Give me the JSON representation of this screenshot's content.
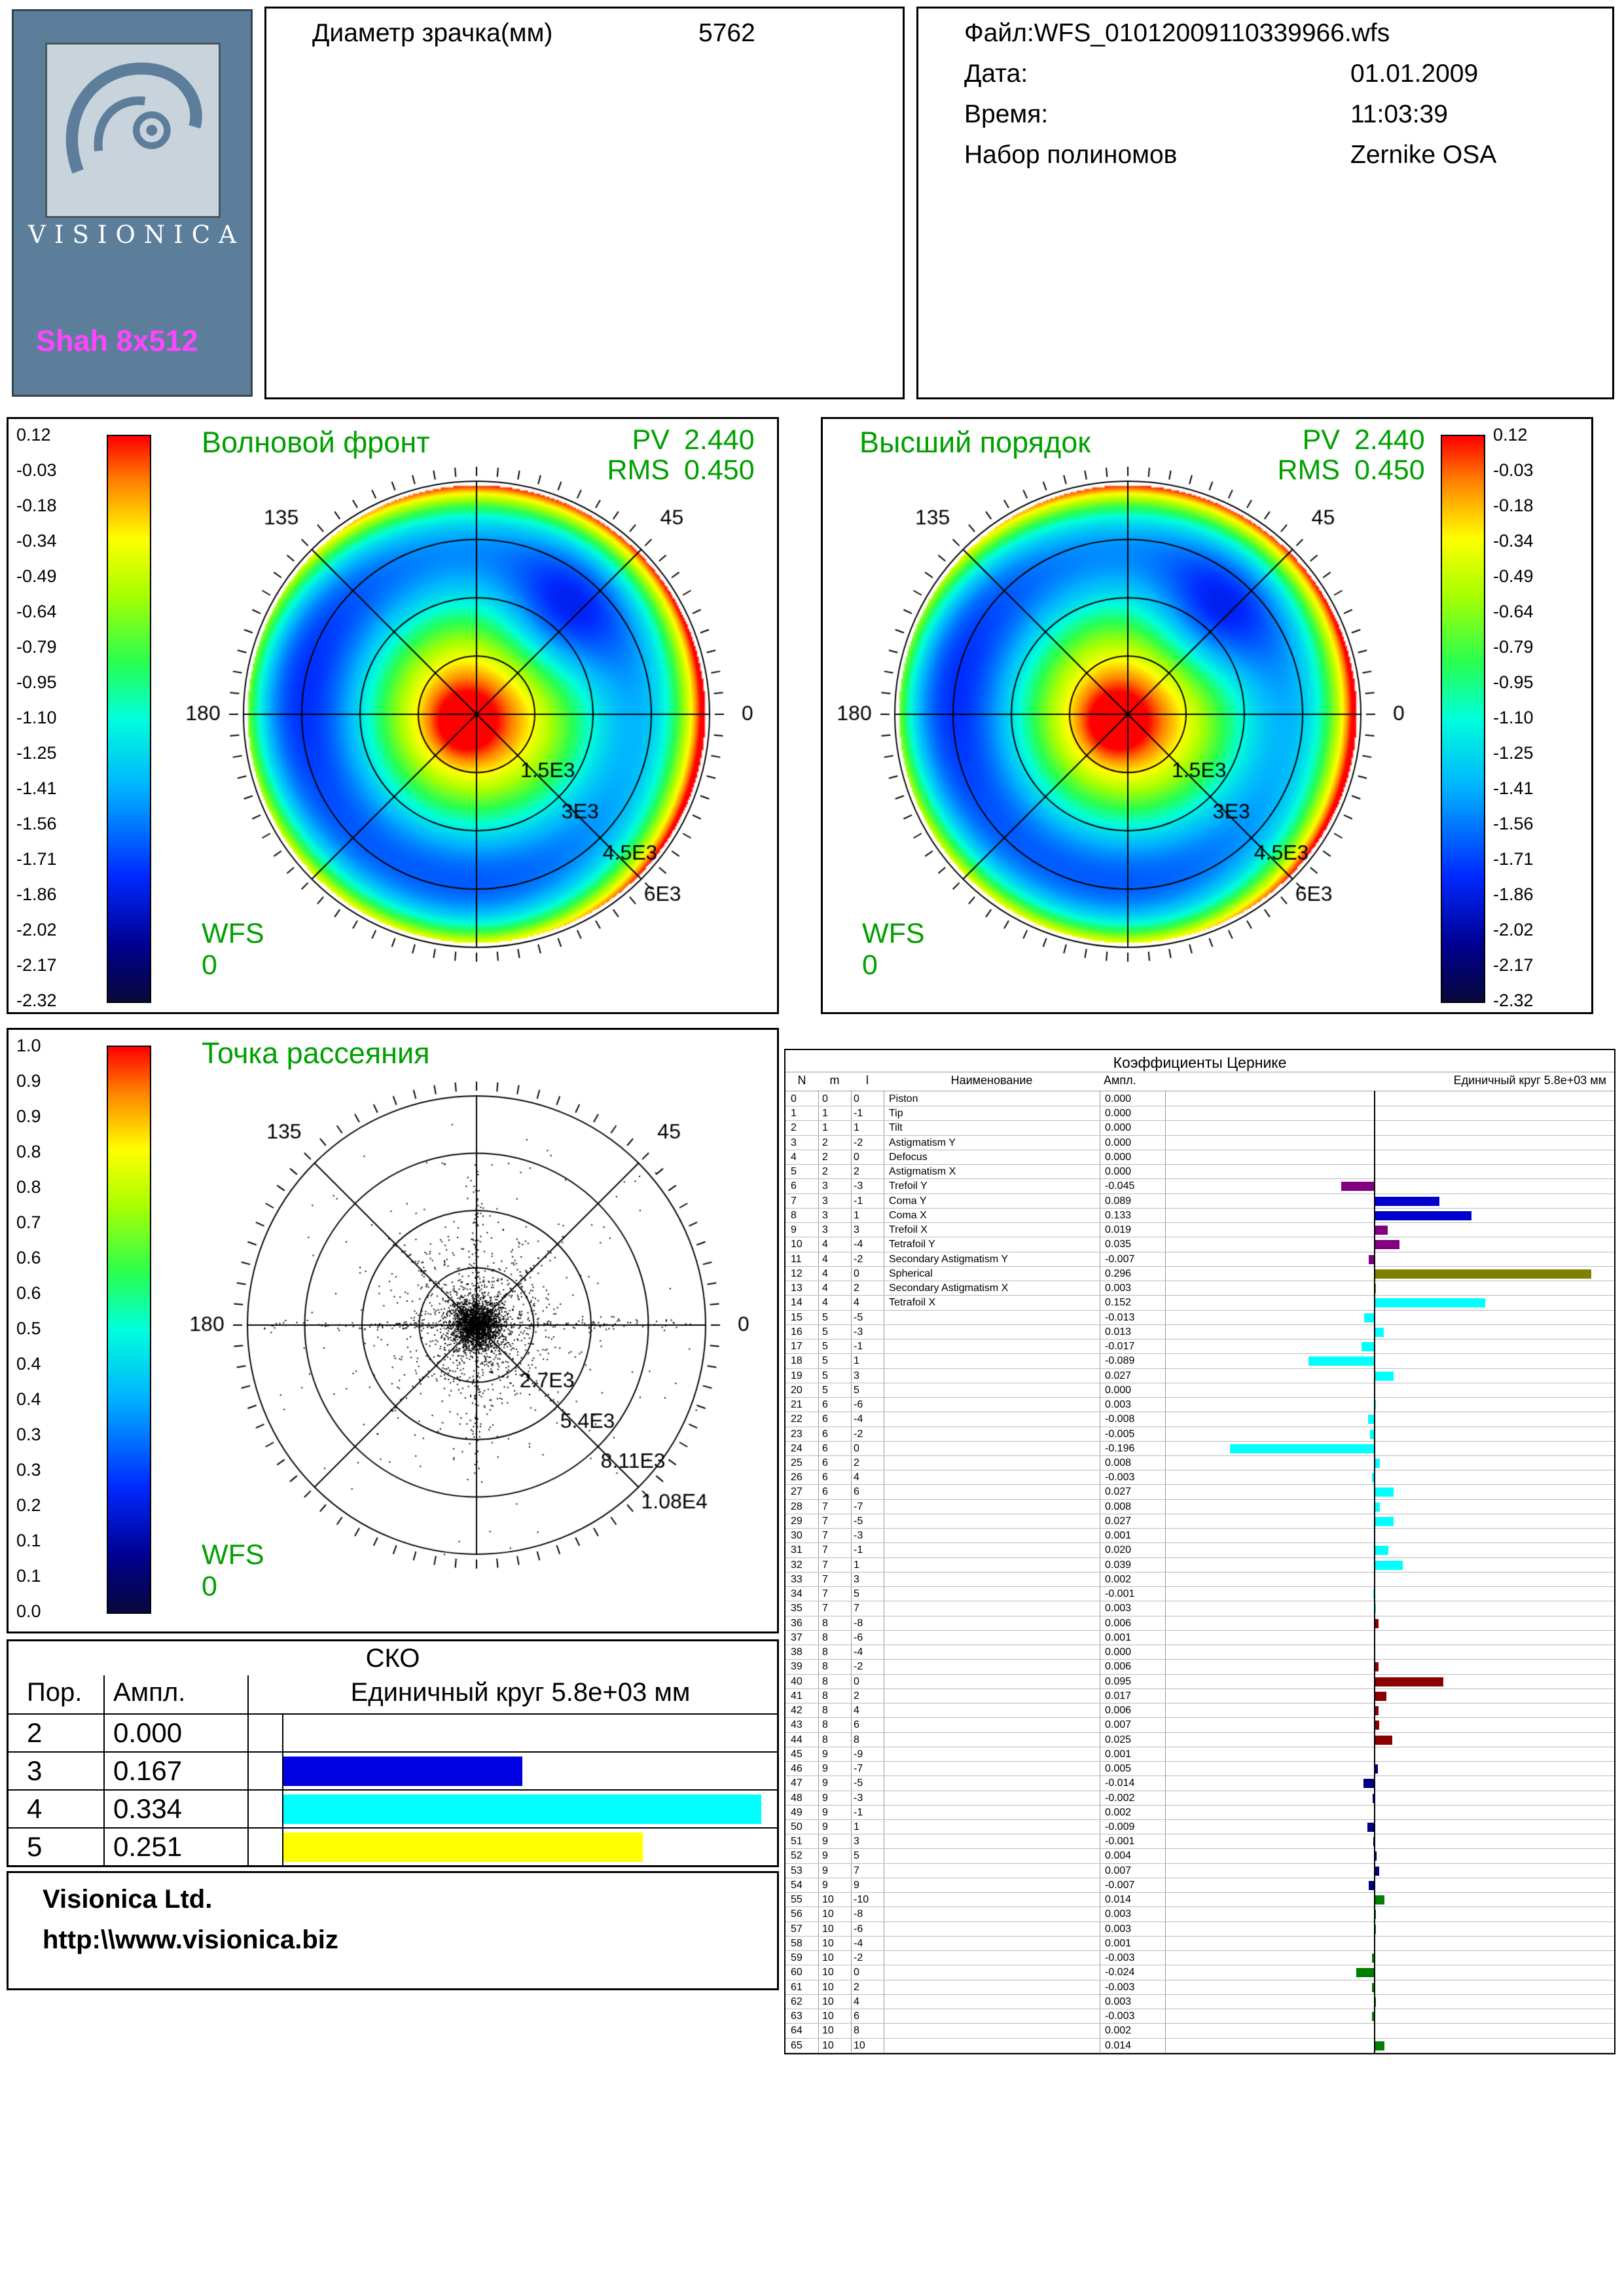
{
  "colors": {
    "accent_green": "#00a000",
    "brand_magenta": "#ff45ff",
    "logo_bg": "#5d7e9b"
  },
  "logo": {
    "brand": "VISIONICA",
    "model": "Shah 8x512"
  },
  "pupil": {
    "label": "Диаметр зрачка(мм)",
    "value": "5762"
  },
  "fileinfo": {
    "file": "Файл:WFS_01012009110339966.wfs",
    "date_label": "Дата:",
    "date": "01.01.2009",
    "time_label": "Время:",
    "time": "11:03:39",
    "poly_label": "Набор полиномов",
    "poly": "Zernike OSA"
  },
  "wavefront": {
    "title": "Волновой фронт",
    "pv_label": "PV",
    "pv": "2.440",
    "rms_label": "RMS",
    "rms": "0.450",
    "wfs_label": "WFS",
    "wfs_zero": "0"
  },
  "higher": {
    "title": "Высший порядок",
    "pv_label": "PV",
    "pv": "2.440",
    "rms_label": "RMS",
    "rms": "0.450",
    "wfs_label": "WFS",
    "wfs_zero": "0"
  },
  "spot": {
    "title": "Точка рассеяния",
    "wfs_label": "WFS",
    "wfs_zero": "0"
  },
  "zernike": {
    "title": "Коэффициенты Цернике",
    "col_index": "N",
    "col_n": "m",
    "col_m": "l",
    "col_name": "Наименование",
    "col_amp": "Ампл.",
    "unit_label": "Единичный круг 5.8e+03 мм"
  },
  "sko": {
    "title": "СКО",
    "col_order": "Пор.",
    "col_amp": "Ампл.",
    "unit_label": "Единичный круг 5.8e+03 мм"
  },
  "footer": {
    "company": "Visionica Ltd.",
    "url": "http:\\\\www.visionica.biz"
  },
  "chart_data": [
    {
      "id": "wavefront_map",
      "type": "heatmap",
      "title": "Волновой фронт",
      "pv": 2.44,
      "rms": 0.45,
      "scale_min": -2.32,
      "scale_max": 0.12,
      "colorbar_ticks": [
        "0.12",
        "-0.03",
        "-0.18",
        "-0.34",
        "-0.49",
        "-0.64",
        "-0.79",
        "-0.95",
        "-1.10",
        "-1.25",
        "-1.41",
        "-1.56",
        "-1.71",
        "-1.86",
        "-2.02",
        "-2.17",
        "-2.32"
      ],
      "angle_labels": [
        "135",
        "45",
        "180",
        "0"
      ],
      "radius_labels": [
        "1.5E3",
        "3E3",
        "4.5E3",
        "6E3"
      ]
    },
    {
      "id": "higher_order_map",
      "type": "heatmap",
      "title": "Высший порядок",
      "pv": 2.44,
      "rms": 0.45,
      "scale_min": -2.32,
      "scale_max": 0.12,
      "colorbar_ticks": [
        "0.12",
        "-0.03",
        "-0.18",
        "-0.34",
        "-0.49",
        "-0.64",
        "-0.79",
        "-0.95",
        "-1.10",
        "-1.25",
        "-1.41",
        "-1.56",
        "-1.71",
        "-1.86",
        "-2.02",
        "-2.17",
        "-2.32"
      ],
      "angle_labels": [
        "135",
        "45",
        "180",
        "0"
      ],
      "radius_labels": [
        "1.5E3",
        "3E3",
        "4.5E3",
        "6E3"
      ]
    },
    {
      "id": "spot_diagram",
      "type": "scatter",
      "title": "Точка рассеяния",
      "colorbar_ticks": [
        "1.0",
        "0.9",
        "0.9",
        "0.8",
        "0.8",
        "0.7",
        "0.6",
        "0.6",
        "0.5",
        "0.4",
        "0.4",
        "0.3",
        "0.3",
        "0.2",
        "0.1",
        "0.1",
        "0.0"
      ],
      "angle_labels": [
        "135",
        "45",
        "180",
        "0"
      ],
      "radius_labels": [
        "2.7E3",
        "5.4E3",
        "8.11E3",
        "1.08E4"
      ]
    },
    {
      "id": "zernike_coefficients",
      "type": "bar",
      "title": "Коэффициенты Цернике",
      "unit_label": "Единичный круг 5.8e+03 мм",
      "rows": [
        [
          0,
          0,
          0,
          "Piston",
          0,
          "#000080"
        ],
        [
          1,
          1,
          -1,
          "Tip",
          0,
          "#000080"
        ],
        [
          2,
          1,
          1,
          "Tilt",
          0,
          "#000080"
        ],
        [
          3,
          2,
          -2,
          "Astigmatism Y",
          0,
          "#000080"
        ],
        [
          4,
          2,
          0,
          "Defocus",
          0,
          "#000080"
        ],
        [
          5,
          2,
          2,
          "Astigmatism X",
          0,
          "#000080"
        ],
        [
          6,
          3,
          -3,
          "Trefoil Y",
          -0.045,
          "#800080"
        ],
        [
          7,
          3,
          -1,
          "Coma Y",
          0.089,
          "#0000cc"
        ],
        [
          8,
          3,
          1,
          "Coma X",
          0.133,
          "#0000cc"
        ],
        [
          9,
          3,
          3,
          "Trefoil X",
          0.019,
          "#800080"
        ],
        [
          10,
          4,
          -4,
          "Tetrafoil Y",
          0.035,
          "#800080"
        ],
        [
          11,
          4,
          -2,
          "Secondary Astigmatism Y",
          -0.007,
          "#800080"
        ],
        [
          12,
          4,
          0,
          "Spherical",
          0.296,
          "#808000"
        ],
        [
          13,
          4,
          2,
          "Secondary Astigmatism X",
          0.003,
          "#808000"
        ],
        [
          14,
          4,
          4,
          "Tetrafoil X",
          0.152,
          "#00ffff"
        ],
        [
          15,
          5,
          -5,
          "",
          -0.013,
          "#00ffff"
        ],
        [
          16,
          5,
          -3,
          "",
          0.013,
          "#00ffff"
        ],
        [
          17,
          5,
          -1,
          "",
          -0.017,
          "#00ffff"
        ],
        [
          18,
          5,
          1,
          "",
          -0.089,
          "#00ffff"
        ],
        [
          19,
          5,
          3,
          "",
          0.027,
          "#00ffff"
        ],
        [
          20,
          5,
          5,
          "",
          0,
          "#00ffff"
        ],
        [
          21,
          6,
          -6,
          "",
          0.003,
          "#00ffff"
        ],
        [
          22,
          6,
          -4,
          "",
          -0.008,
          "#00ffff"
        ],
        [
          23,
          6,
          -2,
          "",
          -0.005,
          "#00ffff"
        ],
        [
          24,
          6,
          0,
          "",
          -0.196,
          "#00ffff"
        ],
        [
          25,
          6,
          2,
          "",
          0.008,
          "#00ffff"
        ],
        [
          26,
          6,
          4,
          "",
          -0.003,
          "#00ffff"
        ],
        [
          27,
          6,
          6,
          "",
          0.027,
          "#00ffff"
        ],
        [
          28,
          7,
          -7,
          "",
          0.008,
          "#00ffff"
        ],
        [
          29,
          7,
          -5,
          "",
          0.027,
          "#00ffff"
        ],
        [
          30,
          7,
          -3,
          "",
          0.001,
          "#00ffff"
        ],
        [
          31,
          7,
          -1,
          "",
          0.02,
          "#00ffff"
        ],
        [
          32,
          7,
          1,
          "",
          0.039,
          "#00ffff"
        ],
        [
          33,
          7,
          3,
          "",
          0.002,
          "#00ffff"
        ],
        [
          34,
          7,
          5,
          "",
          -0.001,
          "#00ffff"
        ],
        [
          35,
          7,
          7,
          "",
          0.003,
          "#00ffff"
        ],
        [
          36,
          8,
          -8,
          "",
          0.006,
          "#8b0000"
        ],
        [
          37,
          8,
          -6,
          "",
          0.001,
          "#8b0000"
        ],
        [
          38,
          8,
          -4,
          "",
          0.0,
          "#8b0000"
        ],
        [
          39,
          8,
          -2,
          "",
          0.006,
          "#8b0000"
        ],
        [
          40,
          8,
          0,
          "",
          0.095,
          "#8b0000"
        ],
        [
          41,
          8,
          2,
          "",
          0.017,
          "#8b0000"
        ],
        [
          42,
          8,
          4,
          "",
          0.006,
          "#8b0000"
        ],
        [
          43,
          8,
          6,
          "",
          0.007,
          "#8b0000"
        ],
        [
          44,
          8,
          8,
          "",
          0.025,
          "#8b0000"
        ],
        [
          45,
          9,
          -9,
          "",
          0.001,
          "#000080"
        ],
        [
          46,
          9,
          -7,
          "",
          0.005,
          "#000080"
        ],
        [
          47,
          9,
          -5,
          "",
          -0.014,
          "#000080"
        ],
        [
          48,
          9,
          -3,
          "",
          -0.002,
          "#000080"
        ],
        [
          49,
          9,
          -1,
          "",
          0.002,
          "#000080"
        ],
        [
          50,
          9,
          1,
          "",
          -0.009,
          "#000080"
        ],
        [
          51,
          9,
          3,
          "",
          -0.001,
          "#000080"
        ],
        [
          52,
          9,
          5,
          "",
          0.004,
          "#000080"
        ],
        [
          53,
          9,
          7,
          "",
          0.007,
          "#000080"
        ],
        [
          54,
          9,
          9,
          "",
          -0.007,
          "#000080"
        ],
        [
          55,
          10,
          -10,
          "",
          0.014,
          "#008000"
        ],
        [
          56,
          10,
          -8,
          "",
          0.003,
          "#008000"
        ],
        [
          57,
          10,
          -6,
          "",
          0.003,
          "#008000"
        ],
        [
          58,
          10,
          -4,
          "",
          0.001,
          "#008000"
        ],
        [
          59,
          10,
          -2,
          "",
          -0.003,
          "#008000"
        ],
        [
          60,
          10,
          0,
          "",
          -0.024,
          "#008000"
        ],
        [
          61,
          10,
          2,
          "",
          -0.003,
          "#008000"
        ],
        [
          62,
          10,
          4,
          "",
          0.003,
          "#008000"
        ],
        [
          63,
          10,
          6,
          "",
          -0.003,
          "#008000"
        ],
        [
          64,
          10,
          8,
          "",
          0.002,
          "#008000"
        ],
        [
          65,
          10,
          10,
          "",
          0.014,
          "#008000"
        ]
      ]
    },
    {
      "id": "sko",
      "type": "bar",
      "title": "СКО",
      "unit_label": "Единичный круг 5.8e+03 мм",
      "categories": [
        "2",
        "3",
        "4",
        "5"
      ],
      "values": [
        0.0,
        0.167,
        0.334,
        0.251
      ],
      "bar_colors": [
        "#000000",
        "#0000e0",
        "#00ffff",
        "#ffff00"
      ],
      "scale_max": 0.334
    }
  ]
}
